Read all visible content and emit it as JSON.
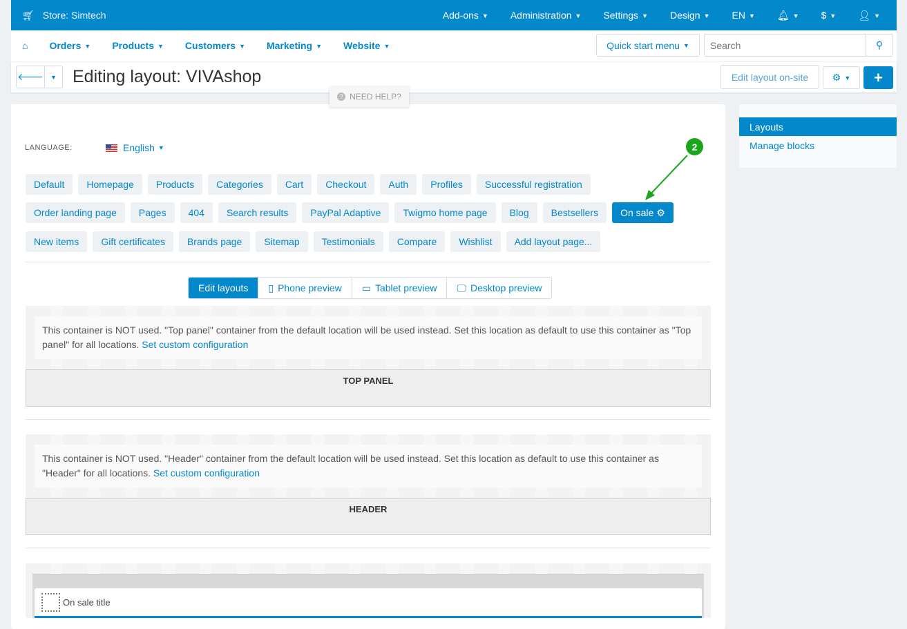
{
  "topbar": {
    "store": "Store: Simtech",
    "menu": [
      "Add-ons",
      "Administration",
      "Settings",
      "Design",
      "EN"
    ],
    "currency": "$"
  },
  "nav": {
    "items": [
      "Orders",
      "Products",
      "Customers",
      "Marketing",
      "Website"
    ],
    "quick_start": "Quick start menu",
    "search_placeholder": "Search"
  },
  "title": {
    "text": "Editing layout: VIVAshop",
    "edit_onsite": "Edit layout on-site",
    "need_help": "NEED HELP?"
  },
  "language": {
    "label": "LANGUAGE:",
    "value": "English"
  },
  "layout_tabs": [
    [
      "Default",
      "Homepage",
      "Products",
      "Categories",
      "Cart",
      "Checkout",
      "Auth",
      "Profiles",
      "Successful registration"
    ],
    [
      "Order landing page",
      "Pages",
      "404",
      "Search results",
      "PayPal Adaptive",
      "Twigmo home page",
      "Blog",
      "Bestsellers",
      "On sale"
    ],
    [
      "New items",
      "Gift certificates",
      "Brands page",
      "Sitemap",
      "Testimonials",
      "Compare",
      "Wishlist",
      "Add layout page..."
    ]
  ],
  "active_tab": "On sale",
  "preview": {
    "edit": "Edit layouts",
    "phone": "Phone preview",
    "tablet": "Tablet preview",
    "desktop": "Desktop preview"
  },
  "containers": [
    {
      "note": "This container is NOT used. \"Top panel\" container from the default location will be used instead. Set this location as default to use this container as \"Top panel\" for all locations.",
      "link": "Set custom configuration",
      "title": "TOP PANEL"
    },
    {
      "note": "This container is NOT used. \"Header\" container from the default location will be used instead. Set this location as default to use this container as \"Header\" for all locations.",
      "link": "Set custom configuration",
      "title": "HEADER"
    }
  ],
  "block": {
    "title": "On sale title"
  },
  "sidebar": {
    "items": [
      "Layouts",
      "Manage blocks"
    ]
  },
  "annotation": {
    "number": "2",
    "color": "#1aa51a"
  },
  "colors": {
    "accent": "#0388cc"
  }
}
